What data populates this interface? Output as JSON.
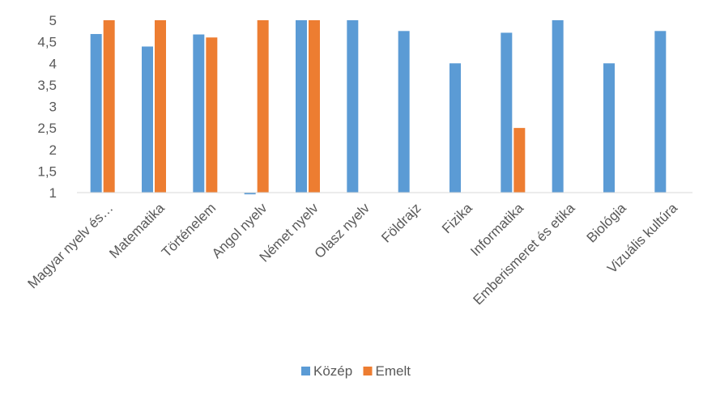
{
  "chart_data": {
    "type": "bar",
    "title": "",
    "xlabel": "",
    "ylabel": "",
    "ylim": [
      1,
      5
    ],
    "yticks": [
      "1",
      "1,5",
      "2",
      "2,5",
      "3",
      "3,5",
      "4",
      "4,5",
      "5"
    ],
    "grid": false,
    "legend_position": "bottom",
    "categories": [
      "Magyar nyelv és…",
      "Matematika",
      "Történelem",
      "Angol nyelv",
      "Német nyelv",
      "Olasz nyelv",
      "Földrajz",
      "Fizika",
      "Informatika",
      "Emberismeret és etika",
      "Biológia",
      "Vizuális kultúra"
    ],
    "series": [
      {
        "name": "Közép",
        "color": "#5B9BD5",
        "values": [
          4.68,
          4.39,
          4.67,
          0.96,
          5,
          5,
          4.75,
          4,
          4.71,
          5,
          4,
          4.75
        ]
      },
      {
        "name": "Emelt",
        "color": "#ED7D31",
        "values": [
          5,
          5,
          4.6,
          5,
          5,
          null,
          null,
          null,
          2.5,
          null,
          null,
          null
        ]
      }
    ]
  }
}
